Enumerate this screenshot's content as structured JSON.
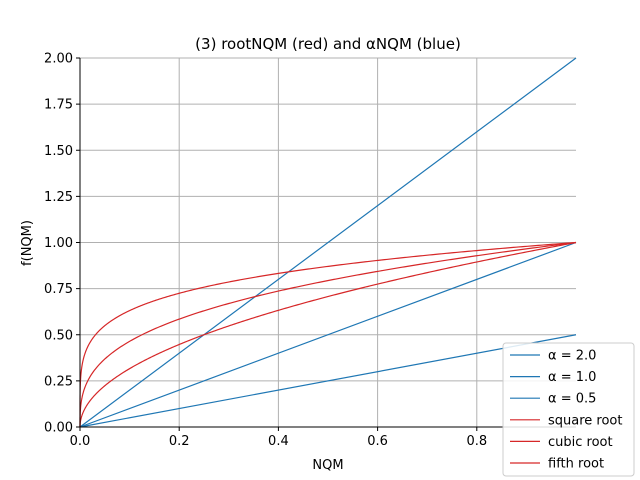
{
  "chart_data": {
    "type": "line",
    "title": "(3) rootNQM (red) and αNQM (blue)",
    "xlabel": "NQM",
    "ylabel": "f(NQM)",
    "xlim": [
      0,
      1
    ],
    "ylim": [
      0,
      2
    ],
    "grid": true,
    "x_ticks": [
      0.0,
      0.2,
      0.4,
      0.6,
      0.8
    ],
    "x_tick_labels": [
      "0.0",
      "0.2",
      "0.4",
      "0.6",
      "0.8"
    ],
    "y_ticks": [
      0.0,
      0.25,
      0.5,
      0.75,
      1.0,
      1.25,
      1.5,
      1.75,
      2.0
    ],
    "y_tick_labels": [
      "0.00",
      "0.25",
      "0.50",
      "0.75",
      "1.00",
      "1.25",
      "1.50",
      "1.75",
      "2.00"
    ],
    "legend_position": "bottom-right",
    "series": [
      {
        "name": "α = 2.0",
        "color": "#1f77b4",
        "x": [
          0,
          1
        ],
        "y": [
          0,
          2.0
        ]
      },
      {
        "name": "α = 1.0",
        "color": "#1f77b4",
        "x": [
          0,
          1
        ],
        "y": [
          0,
          1.0
        ]
      },
      {
        "name": "α = 0.5",
        "color": "#1f77b4",
        "x": [
          0,
          1
        ],
        "y": [
          0,
          0.5
        ]
      },
      {
        "name": "square root",
        "color": "#d62728",
        "x": [
          0,
          0.001,
          0.005,
          0.01,
          0.02,
          0.05,
          0.1,
          0.2,
          0.3,
          0.4,
          0.5,
          0.6,
          0.7,
          0.8,
          0.9,
          1.0
        ],
        "y": [
          0,
          0.032,
          0.071,
          0.1,
          0.141,
          0.224,
          0.316,
          0.447,
          0.548,
          0.632,
          0.707,
          0.775,
          0.837,
          0.894,
          0.949,
          1.0
        ]
      },
      {
        "name": "cubic root",
        "color": "#d62728",
        "x": [
          0,
          0.001,
          0.005,
          0.01,
          0.02,
          0.05,
          0.1,
          0.2,
          0.3,
          0.4,
          0.5,
          0.6,
          0.7,
          0.8,
          0.9,
          1.0
        ],
        "y": [
          0,
          0.1,
          0.171,
          0.215,
          0.271,
          0.368,
          0.464,
          0.585,
          0.669,
          0.737,
          0.794,
          0.843,
          0.888,
          0.928,
          0.965,
          1.0
        ]
      },
      {
        "name": "fifth root",
        "color": "#d62728",
        "x": [
          0,
          0.001,
          0.005,
          0.01,
          0.02,
          0.05,
          0.1,
          0.2,
          0.3,
          0.4,
          0.5,
          0.6,
          0.7,
          0.8,
          0.9,
          1.0
        ],
        "y": [
          0,
          0.251,
          0.347,
          0.398,
          0.457,
          0.549,
          0.631,
          0.725,
          0.786,
          0.833,
          0.871,
          0.903,
          0.931,
          0.956,
          0.979,
          1.0
        ]
      }
    ]
  }
}
